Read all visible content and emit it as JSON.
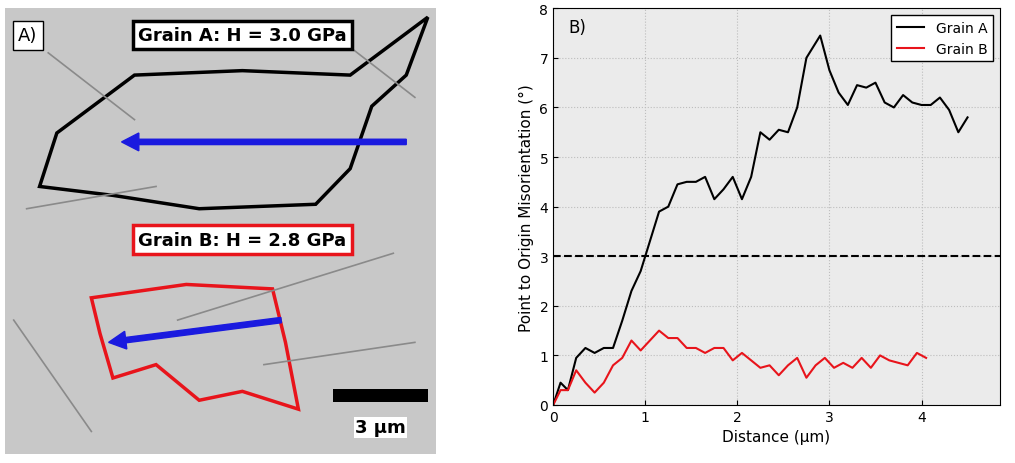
{
  "image_panel": {
    "label": "A)",
    "annotations": [
      {
        "text": "Grain A: H = 3.0 GPa",
        "color": "#000000"
      },
      {
        "text": "Grain B: H = 2.8 GPa",
        "color": "#e8141b"
      }
    ],
    "scale_bar": "3 µm"
  },
  "chart_data": {
    "type": "line",
    "title": "B)",
    "x_label": "Distance (µm)",
    "y_label": "Point to Origin Misorientation (°)",
    "xlim": [
      0,
      4.85
    ],
    "xticks": [
      0,
      1,
      2,
      3,
      4
    ],
    "ylim": [
      0,
      8
    ],
    "yticks": [
      0,
      1,
      2,
      3,
      4,
      5,
      6,
      7,
      8
    ],
    "grid": true,
    "legend": "upper right",
    "hline": 3,
    "series": [
      {
        "name": "Grain A",
        "color": "#000000",
        "x": [
          0,
          0.08,
          0.16,
          0.25,
          0.35,
          0.45,
          0.55,
          0.65,
          0.75,
          0.85,
          0.95,
          1.05,
          1.15,
          1.25,
          1.35,
          1.45,
          1.55,
          1.65,
          1.75,
          1.85,
          1.95,
          2.05,
          2.15,
          2.25,
          2.35,
          2.45,
          2.55,
          2.65,
          2.75,
          2.9,
          3.0,
          3.1,
          3.2,
          3.3,
          3.4,
          3.5,
          3.6,
          3.7,
          3.8,
          3.9,
          4.0,
          4.1,
          4.2,
          4.3,
          4.4,
          4.5
        ],
        "values": [
          0,
          0.45,
          0.3,
          0.95,
          1.15,
          1.05,
          1.15,
          1.15,
          1.7,
          2.3,
          2.7,
          3.3,
          3.9,
          4.0,
          4.45,
          4.5,
          4.5,
          4.6,
          4.15,
          4.35,
          4.6,
          4.15,
          4.6,
          5.5,
          5.35,
          5.55,
          5.5,
          6.0,
          7.0,
          7.45,
          6.75,
          6.3,
          6.05,
          6.45,
          6.4,
          6.5,
          6.1,
          6.0,
          6.25,
          6.1,
          6.05,
          6.05,
          6.2,
          5.95,
          5.5,
          5.8
        ]
      },
      {
        "name": "Grain B",
        "color": "#e8141b",
        "x": [
          0,
          0.08,
          0.16,
          0.25,
          0.35,
          0.45,
          0.55,
          0.65,
          0.75,
          0.85,
          0.95,
          1.05,
          1.15,
          1.25,
          1.35,
          1.45,
          1.55,
          1.65,
          1.75,
          1.85,
          1.95,
          2.05,
          2.15,
          2.25,
          2.35,
          2.45,
          2.55,
          2.65,
          2.75,
          2.85,
          2.95,
          3.05,
          3.15,
          3.25,
          3.35,
          3.45,
          3.55,
          3.65,
          3.75,
          3.85,
          3.95,
          4.05
        ],
        "values": [
          0,
          0.3,
          0.3,
          0.7,
          0.45,
          0.25,
          0.45,
          0.8,
          0.95,
          1.3,
          1.1,
          1.3,
          1.5,
          1.35,
          1.35,
          1.15,
          1.15,
          1.05,
          1.15,
          1.15,
          0.9,
          1.05,
          0.9,
          0.75,
          0.8,
          0.6,
          0.8,
          0.95,
          0.55,
          0.8,
          0.95,
          0.75,
          0.85,
          0.75,
          0.95,
          0.75,
          1.0,
          0.9,
          0.85,
          0.8,
          1.05,
          0.95
        ]
      }
    ]
  }
}
